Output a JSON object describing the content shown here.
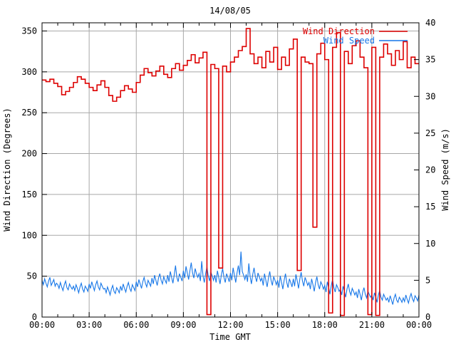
{
  "title": "14/08/05",
  "legend": {
    "position": "top-right-inside",
    "entries": [
      {
        "label": "Wind Direction",
        "color": "#dd0000"
      },
      {
        "label": "Wind Speed",
        "color": "#1777e8"
      }
    ]
  },
  "colors": {
    "wind_direction": "#dd0000",
    "wind_speed": "#1777e8",
    "grid": "#a8a8a8",
    "frame": "#000000",
    "background": "#ffffff"
  },
  "chart_data": {
    "type": "line",
    "title": "14/08/05",
    "grid": true,
    "x_axis": {
      "label": "Time GMT",
      "range_hours": [
        0,
        24
      ],
      "major_tick_step_hours": 3,
      "minor_tick_step_hours": 1,
      "tick_labels": [
        "00:00",
        "03:00",
        "06:00",
        "09:00",
        "12:00",
        "15:00",
        "18:00",
        "21:00",
        "00:00"
      ]
    },
    "y_left_axis": {
      "label": "Wind Direction (Degrees)",
      "range": [
        0,
        360
      ],
      "tick_step": 50,
      "ticks": [
        0,
        50,
        100,
        150,
        200,
        250,
        300,
        350
      ]
    },
    "y_right_axis": {
      "label": "Wind Speed (m/s)",
      "range": [
        0,
        40
      ],
      "tick_step": 5,
      "ticks": [
        0,
        5,
        10,
        15,
        20,
        25,
        30,
        35,
        40
      ]
    },
    "series": [
      {
        "name": "Wind Direction",
        "axis": "left",
        "style": "steps",
        "color": "#dd0000",
        "units": "degrees",
        "interval_minutes": 15,
        "start_time": "00:00",
        "values": [
          290,
          288,
          291,
          286,
          282,
          272,
          276,
          281,
          287,
          294,
          291,
          286,
          281,
          277,
          284,
          289,
          281,
          271,
          264,
          269,
          277,
          283,
          279,
          275,
          287,
          296,
          304,
          299,
          295,
          301,
          307,
          297,
          293,
          304,
          310,
          302,
          308,
          314,
          321,
          311,
          317,
          324,
          3,
          309,
          304,
          60,
          307,
          300,
          312,
          318,
          326,
          331,
          353,
          322,
          310,
          318,
          305,
          325,
          312,
          330,
          303,
          318,
          308,
          328,
          340,
          57,
          318,
          312,
          310,
          110,
          322,
          335,
          315,
          5,
          330,
          348,
          2,
          325,
          310,
          332,
          338,
          318,
          305,
          3,
          330,
          2,
          318,
          334,
          322,
          308,
          326,
          315,
          337,
          305,
          318,
          310,
          310
        ]
      },
      {
        "name": "Wind Speed",
        "axis": "right",
        "style": "lines",
        "color": "#1777e8",
        "units": "m/s",
        "interval_minutes": 5,
        "start_time": "00:00",
        "values": [
          5.0,
          4.4,
          5.2,
          4.6,
          4.1,
          4.9,
          5.4,
          4.3,
          4.7,
          5.1,
          4.2,
          4.6,
          4.4,
          3.9,
          4.7,
          4.1,
          3.6,
          4.4,
          4.9,
          4.0,
          3.7,
          4.5,
          4.1,
          3.8,
          4.2,
          3.6,
          4.4,
          3.9,
          3.3,
          4.1,
          4.6,
          3.8,
          3.4,
          4.2,
          3.9,
          3.5,
          4.5,
          3.9,
          4.8,
          4.2,
          3.6,
          4.4,
          4.9,
          4.1,
          3.7,
          4.6,
          4.2,
          3.8,
          3.9,
          3.3,
          4.1,
          3.6,
          3.0,
          3.8,
          4.3,
          3.5,
          3.2,
          4.0,
          3.7,
          3.3,
          4.2,
          3.6,
          4.5,
          3.9,
          3.4,
          4.2,
          4.7,
          3.9,
          3.5,
          4.4,
          4.0,
          3.6,
          4.8,
          4.1,
          5.1,
          4.5,
          3.9,
          4.8,
          5.4,
          4.6,
          4.1,
          5.0,
          4.6,
          4.2,
          5.3,
          4.5,
          5.7,
          5.0,
          4.3,
          5.3,
          5.9,
          5.0,
          4.5,
          5.5,
          5.0,
          4.6,
          5.7,
          4.8,
          6.2,
          5.4,
          4.6,
          5.7,
          7.0,
          5.4,
          4.8,
          5.9,
          5.4,
          4.9,
          6.3,
          5.3,
          6.9,
          6.0,
          5.1,
          6.3,
          7.4,
          6.0,
          5.3,
          6.6,
          5.9,
          5.4,
          5.9,
          4.9,
          7.6,
          5.6,
          4.7,
          5.9,
          6.8,
          5.6,
          4.9,
          6.1,
          5.6,
          5.0,
          5.7,
          4.7,
          6.3,
          5.4,
          4.5,
          5.7,
          6.6,
          5.4,
          4.7,
          5.9,
          5.4,
          4.8,
          6.0,
          5.0,
          6.7,
          5.7,
          4.7,
          6.0,
          7.0,
          5.7,
          8.9,
          6.2,
          5.7,
          5.1,
          5.8,
          4.8,
          7.3,
          5.5,
          4.5,
          5.8,
          6.7,
          5.5,
          4.8,
          6.0,
          5.5,
          4.9,
          5.3,
          4.3,
          5.9,
          5.0,
          4.1,
          5.3,
          6.2,
          5.0,
          4.3,
          5.5,
          5.0,
          4.4,
          5.0,
          4.0,
          5.6,
          4.7,
          3.8,
          5.0,
          5.9,
          4.7,
          4.0,
          5.2,
          4.7,
          4.1,
          5.2,
          4.2,
          5.8,
          4.9,
          3.9,
          5.2,
          6.1,
          4.9,
          4.2,
          5.4,
          4.9,
          4.3,
          4.7,
          3.8,
          5.2,
          4.4,
          3.5,
          4.7,
          5.5,
          4.4,
          3.8,
          4.8,
          4.4,
          3.8,
          4.3,
          3.4,
          4.8,
          4.0,
          3.1,
          4.3,
          5.1,
          4.0,
          3.4,
          4.4,
          4.0,
          3.5,
          3.8,
          3.0,
          4.2,
          3.5,
          2.7,
          3.8,
          4.5,
          3.5,
          3.0,
          3.9,
          3.5,
          3.0,
          3.4,
          2.6,
          3.8,
          3.1,
          2.3,
          3.4,
          4.0,
          3.1,
          2.6,
          3.5,
          3.1,
          2.7,
          3.0,
          2.3,
          3.3,
          2.7,
          2.0,
          3.0,
          3.6,
          2.7,
          2.3,
          3.1,
          2.7,
          2.3,
          2.6,
          2.0,
          2.9,
          2.3,
          1.7,
          2.6,
          3.1,
          2.3,
          2.0,
          2.7,
          2.4,
          2.0,
          2.6,
          2.1,
          3.0,
          2.4,
          1.9,
          2.7,
          3.2,
          2.5,
          2.1,
          2.9,
          2.6,
          2.2,
          3.0
        ]
      }
    ]
  }
}
